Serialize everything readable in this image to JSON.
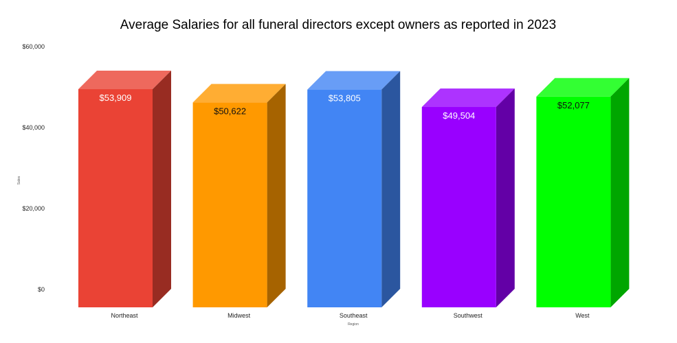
{
  "chart_data": {
    "type": "bar",
    "title": "Average Salaries for all funeral directors except owners as reported in 2023",
    "xlabel": "Region",
    "ylabel": "Sales",
    "categories": [
      "Northeast",
      "Midwest",
      "Southeast",
      "Southwest",
      "West"
    ],
    "values": [
      53909,
      50622,
      53805,
      49504,
      52077
    ],
    "data_labels": [
      "$53,909",
      "$50,622",
      "$53,805",
      "$49,504",
      "$52,077"
    ],
    "colors": [
      "#ea4335",
      "#ff9900",
      "#4285f4",
      "#9900ff",
      "#00ff00"
    ],
    "yticks": [
      "$0",
      "$20,000",
      "$40,000",
      "$60,000"
    ],
    "ylim": [
      0,
      60000
    ],
    "style": "3d",
    "grid": false,
    "legend": "none"
  }
}
